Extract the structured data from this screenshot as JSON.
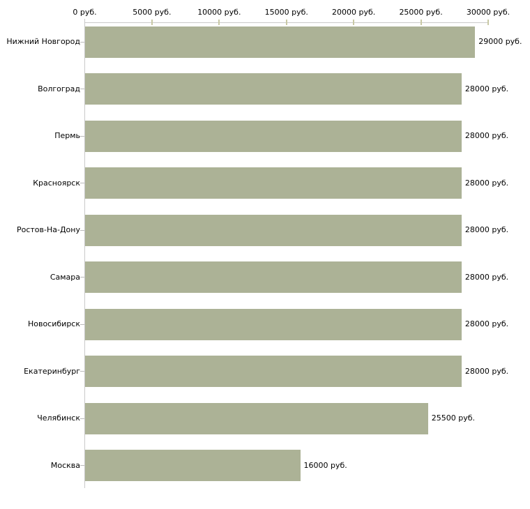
{
  "chart_data": {
    "type": "bar",
    "orientation": "horizontal",
    "title": "",
    "xlabel": "",
    "ylabel": "",
    "grid": false,
    "legend": false,
    "xlim": [
      0,
      30000
    ],
    "x_ticks": [
      0,
      5000,
      10000,
      15000,
      20000,
      25000,
      30000
    ],
    "x_tick_labels": [
      "0 руб.",
      "5000 руб.",
      "10000 руб.",
      "15000 руб.",
      "20000 руб.",
      "25000 руб.",
      "30000 руб."
    ],
    "categories": [
      "Нижний Новгород",
      "Волгоград",
      "Пермь",
      "Красноярск",
      "Ростов-На-Дону",
      "Самара",
      "Новосибирск",
      "Екатеринбург",
      "Челябинск",
      "Москва"
    ],
    "values": [
      29000,
      28000,
      28000,
      28000,
      28000,
      28000,
      28000,
      28000,
      25500,
      16000
    ],
    "value_labels": [
      "29000 руб.",
      "28000 руб.",
      "28000 руб.",
      "28000 руб.",
      "28000 руб.",
      "28000 руб.",
      "28000 руб.",
      "28000 руб.",
      "25500 руб.",
      "16000 руб."
    ],
    "colors": {
      "bar": "#acb296",
      "axis_line": "#c9c9c9",
      "category_tick": "#b9b9b9",
      "x_tick_mark": "#c9c9a5",
      "text": "#000000",
      "background": "#ffffff"
    }
  }
}
